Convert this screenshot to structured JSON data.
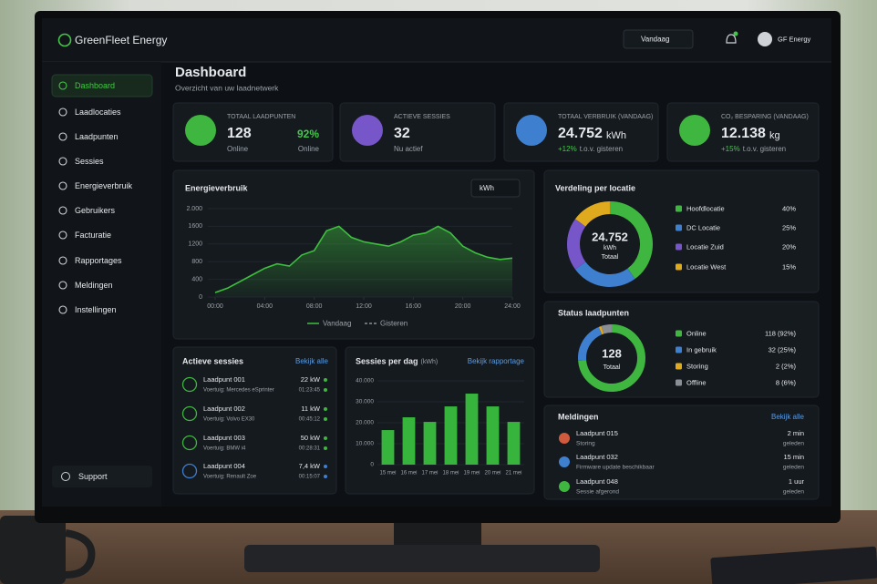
{
  "app": {
    "brand": "GreenFleet Energy",
    "date_filter": "Vandaag",
    "user": "GF Energy"
  },
  "sidebar": {
    "items": [
      "Dashboard",
      "Laadlocaties",
      "Laadpunten",
      "Sessies",
      "Energieverbruik",
      "Gebruikers",
      "Facturatie",
      "Rapportages",
      "Meldingen",
      "Instellingen"
    ],
    "support": "Support"
  },
  "header": {
    "title": "Dashboard",
    "subtitle": "Overzicht van uw laadnetwerk"
  },
  "kpis": [
    {
      "label": "TOTAAL LAADPUNTEN",
      "value": "128",
      "sub": "Online",
      "value2": "92%",
      "sub2": "Online"
    },
    {
      "label": "ACTIEVE SESSIES",
      "value": "32",
      "sub": "Nu actief"
    },
    {
      "label": "TOTAAL VERBRUIK (VANDAAG)",
      "value": "24.752",
      "unit": "kWh",
      "change": "+12%",
      "sub": "t.o.v. gisteren"
    },
    {
      "label": "CO₂ BESPARING (VANDAAG)",
      "value": "12.138",
      "unit": "kg",
      "change": "+15%",
      "sub": "t.o.v. gisteren"
    }
  ],
  "energy_chart": {
    "type": "area",
    "title": "Energieverbruik",
    "unit_select": "kWh",
    "x": [
      0,
      1,
      2,
      3,
      4,
      5,
      6,
      7,
      8,
      9,
      10,
      11,
      12,
      13,
      14,
      15,
      16,
      17,
      18,
      19,
      20,
      21,
      22,
      23,
      24
    ],
    "xlim": [
      0,
      24
    ],
    "xticks": [
      {
        "value": 0,
        "label": "00:00"
      },
      {
        "value": 4,
        "label": "04:00"
      },
      {
        "value": 8,
        "label": "08:00"
      },
      {
        "value": 12,
        "label": "12:00"
      },
      {
        "value": 16,
        "label": "16:00"
      },
      {
        "value": 20,
        "label": "20:00"
      },
      {
        "value": 24,
        "label": "24:00"
      }
    ],
    "ylim": [
      0,
      2000
    ],
    "yticks": [
      0,
      400,
      800,
      1200,
      1600,
      {
        "value": 2000,
        "label": "2.000"
      }
    ],
    "series": [
      {
        "name": "Vandaag",
        "color": "#3fbf3f",
        "values": [
          100,
          200,
          350,
          500,
          650,
          750,
          700,
          950,
          1050,
          1500,
          1600,
          1350,
          1250,
          1200,
          1150,
          1250,
          1400,
          1450,
          1600,
          1450,
          1150,
          1000,
          900,
          850,
          880
        ]
      },
      {
        "name": "Gisteren",
        "color": "#8a8f96"
      }
    ]
  },
  "location_chart": {
    "type": "donut",
    "title": "Verdeling per locatie",
    "center": [
      "24.752",
      "kWh",
      "Totaal"
    ],
    "categories": [
      "Hoofdlocatie",
      "DC Locatie",
      "Locatie Zuid",
      "Locatie West"
    ],
    "values": [
      40,
      25,
      20,
      15
    ],
    "value_labels": [
      "40%",
      "25%",
      "20%",
      "15%"
    ],
    "colors": [
      "#3fb63f",
      "#3f7fd0",
      "#7656c8",
      "#e0aa1e"
    ]
  },
  "status_chart": {
    "type": "donut",
    "title": "Status laadpunten",
    "center": [
      "128",
      "Totaal"
    ],
    "categories": [
      "Online",
      "In gebruik",
      "Storing",
      "Offline"
    ],
    "values": [
      118,
      32,
      2,
      8
    ],
    "value_labels": [
      "118 (92%)",
      "32 (25%)",
      "2 (2%)",
      "8 (6%)"
    ],
    "colors": [
      "#3fb63f",
      "#3f7fd0",
      "#e0aa1e",
      "#8a8f96"
    ]
  },
  "sessions": {
    "title": "Actieve sessies",
    "link": "Bekijk alle",
    "items": [
      {
        "name": "Laadpunt 001",
        "vehicle": "Voertuig: Mercedes eSprinter",
        "power": "22 kW",
        "time": "01:23:45"
      },
      {
        "name": "Laadpunt 002",
        "vehicle": "Voertuig: Volvo EX30",
        "power": "11 kW",
        "time": "00:45:12"
      },
      {
        "name": "Laadpunt 003",
        "vehicle": "Voertuig: BMW i4",
        "power": "50 kW",
        "time": "00:28:31"
      },
      {
        "name": "Laadpunt 004",
        "vehicle": "Voertuig: Renault Zoe",
        "power": "7,4 kW",
        "time": "00:15:07"
      }
    ]
  },
  "daily_chart": {
    "type": "bar",
    "title": "Sessies per dag",
    "unit": "(kWh)",
    "link": "Bekijk rapportage",
    "categories": [
      "15 mei",
      "16 mei",
      "17 mei",
      "18 mei",
      "19 mei",
      "20 mei",
      "21 mei"
    ],
    "values": [
      16500,
      22600,
      20400,
      27800,
      33900,
      27800,
      20400
    ],
    "color": "#36b43c",
    "ylim": [
      0,
      40000
    ],
    "yticks": [
      0,
      {
        "value": 10000,
        "label": "10.000"
      },
      {
        "value": 20000,
        "label": "20.000"
      },
      {
        "value": 30000,
        "label": "30.000"
      },
      {
        "value": 40000,
        "label": "40.000"
      }
    ]
  },
  "alerts": {
    "title": "Meldingen",
    "link": "Bekijk alle",
    "items": [
      {
        "title": "Laadpunt 015",
        "desc": "Storing",
        "time": "2 min",
        "ago": "geleden"
      },
      {
        "title": "Laadpunt 032",
        "desc": "Firmware update beschikbaar",
        "time": "15 min",
        "ago": "geleden"
      },
      {
        "title": "Laadpunt 048",
        "desc": "Sessie afgerond",
        "time": "1 uur",
        "ago": "geleden"
      }
    ]
  }
}
